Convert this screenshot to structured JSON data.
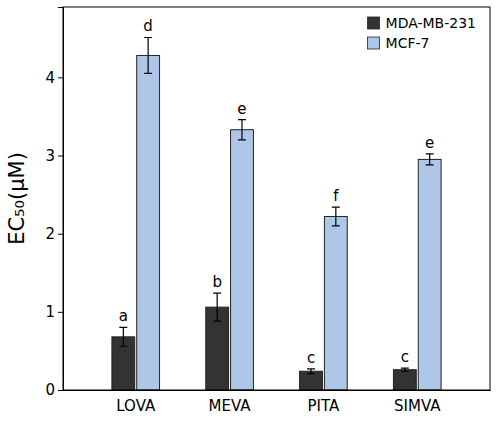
{
  "chart_data": {
    "type": "bar",
    "y_label": "EC₅₀(μM)",
    "categories": [
      "LOVA",
      "MEVA",
      "PITA",
      "SIMVA"
    ],
    "series": [
      {
        "name": "MDA-MB-231",
        "color": "#333333",
        "values": [
          0.68,
          1.06,
          0.24,
          0.26
        ],
        "errors": [
          0.12,
          0.18,
          0.03,
          0.02
        ],
        "annotations": [
          "a",
          "b",
          "c",
          "c"
        ]
      },
      {
        "name": "MCF-7",
        "color": "#aec7e8",
        "values": [
          4.28,
          3.33,
          2.22,
          2.95
        ],
        "errors": [
          0.23,
          0.13,
          0.12,
          0.07
        ],
        "annotations": [
          "d",
          "e",
          "f",
          "e"
        ]
      }
    ],
    "ylim": [
      0,
      4.9
    ],
    "yticks": [
      0,
      1,
      2,
      3,
      4
    ],
    "legend": "upper right"
  }
}
